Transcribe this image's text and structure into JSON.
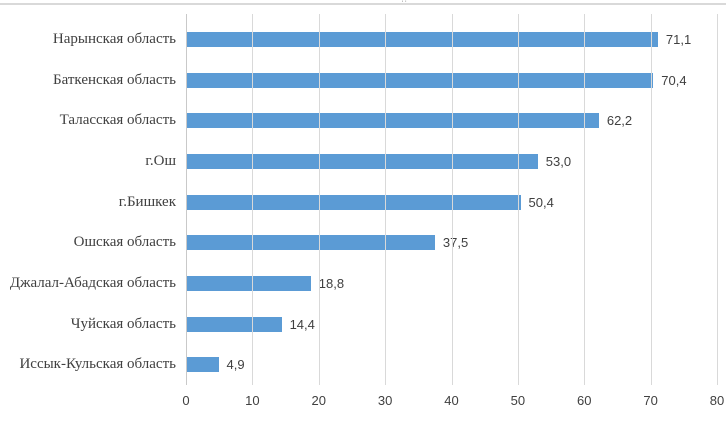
{
  "chart_data": {
    "type": "bar",
    "orientation": "horizontal",
    "title": "",
    "categories": [
      "Нарынская область",
      "Баткенская область",
      "Таласская область",
      "г.Ош",
      "г.Бишкек",
      "Ошская область",
      "Джалал-Абадская область",
      "Чуйская область",
      "Иссык-Кульская область"
    ],
    "values": [
      71.1,
      70.4,
      62.2,
      53.0,
      50.4,
      37.5,
      18.8,
      14.4,
      4.9
    ],
    "value_labels": [
      "71,1",
      "70,4",
      "62,2",
      "53,0",
      "50,4",
      "37,5",
      "18,8",
      "14,4",
      "4,9"
    ],
    "x_ticks": [
      "0",
      "10",
      "20",
      "30",
      "40",
      "50",
      "60",
      "70",
      "80"
    ],
    "xlim": [
      0,
      80
    ],
    "grid": true,
    "legend": "none",
    "xlabel": "",
    "ylabel": "",
    "colors": {
      "bar": "#5B9BD5",
      "gridline": "#D9D9D9",
      "axis_line": "#C9C9C9",
      "text": "#404040"
    }
  }
}
